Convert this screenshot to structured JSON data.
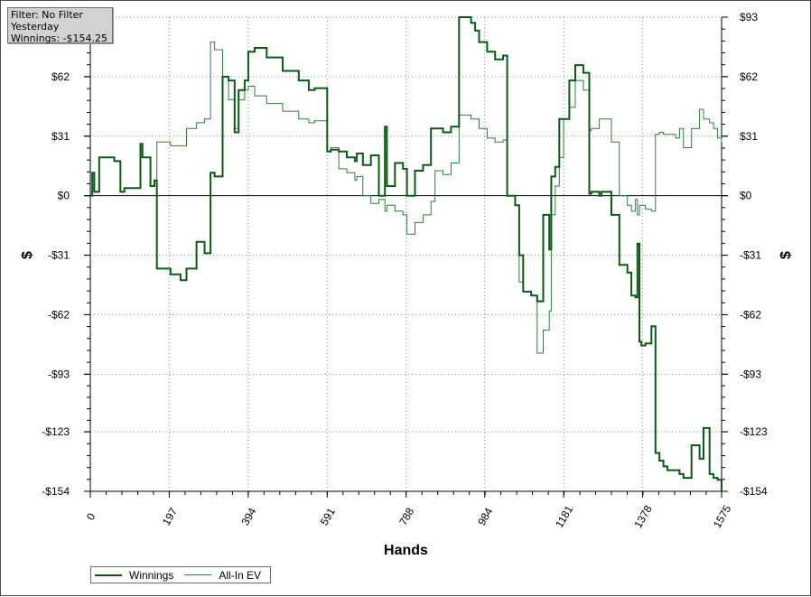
{
  "info": {
    "filter": "Filter: No Filter",
    "period": "Yesterday",
    "winnings": "Winnings: -$154.25"
  },
  "chart_data": {
    "type": "line",
    "xlabel": "Hands",
    "ylabel": "$",
    "ylabel_right": "$",
    "xlim": [
      0,
      1575
    ],
    "ylim": [
      -154,
      93
    ],
    "x_ticks": [
      "0",
      "197",
      "394",
      "591",
      "788",
      "984",
      "1181",
      "1378",
      "1575"
    ],
    "y_ticks": [
      {
        "value": 93,
        "label": "$93"
      },
      {
        "value": 62,
        "label": "$62"
      },
      {
        "value": 31,
        "label": "$31"
      },
      {
        "value": 0,
        "label": "$0"
      },
      {
        "value": -31,
        "label": "-$31"
      },
      {
        "value": -62,
        "label": "-$62"
      },
      {
        "value": -93,
        "label": "-$93"
      },
      {
        "value": -123,
        "label": "-$123"
      },
      {
        "value": -154,
        "label": "-$154"
      }
    ],
    "grid": true,
    "legend_position": "bottom-left",
    "colors": {
      "winnings": "#0a5a14",
      "allin_ev": "#2e7d3c",
      "zero_line": "#000000"
    },
    "series": [
      {
        "name": "Winnings",
        "x": [
          0,
          5,
          10,
          22,
          60,
          75,
          85,
          110,
          125,
          130,
          150,
          160,
          166,
          175,
          200,
          225,
          240,
          265,
          285,
          300,
          310,
          330,
          345,
          360,
          370,
          380,
          385,
          394,
          410,
          440,
          480,
          520,
          545,
          560,
          591,
          600,
          620,
          640,
          660,
          665,
          680,
          700,
          720,
          735,
          740,
          760,
          780,
          790,
          810,
          830,
          850,
          860,
          880,
          900,
          920,
          940,
          950,
          960,
          970,
          990,
          1010,
          1030,
          1040,
          1060,
          1070,
          1080,
          1100,
          1115,
          1130,
          1145,
          1150,
          1160,
          1170,
          1181,
          1195,
          1210,
          1230,
          1245,
          1250,
          1270,
          1275,
          1300,
          1320,
          1340,
          1350,
          1360,
          1365,
          1370,
          1375,
          1385,
          1400,
          1410,
          1420,
          1430,
          1440,
          1460,
          1470,
          1480,
          1500,
          1520,
          1530,
          1545,
          1555,
          1565,
          1575
        ],
        "values": [
          0,
          12,
          2,
          20,
          18,
          2,
          4,
          4,
          27,
          20,
          5,
          8,
          -38,
          -38,
          -41,
          -44,
          -38,
          -24,
          -30,
          12,
          10,
          62,
          60,
          33,
          55,
          55,
          60,
          75,
          77,
          72,
          65,
          60,
          55,
          56,
          23,
          24,
          23,
          20,
          18,
          22,
          16,
          21,
          0,
          36,
          5,
          17,
          14,
          0,
          13,
          16,
          35,
          35,
          33,
          36,
          93,
          93,
          90,
          86,
          80,
          75,
          71,
          73,
          0,
          -5,
          -31,
          -50,
          -52,
          -55,
          -10,
          -28,
          10,
          15,
          40,
          40,
          60,
          68,
          64,
          1,
          2,
          0,
          2,
          -10,
          -36,
          -40,
          -52,
          -53,
          -25,
          -76,
          -78,
          -77,
          -68,
          -134,
          -138,
          -141,
          -143,
          -143,
          -145,
          -147,
          -130,
          -137,
          -121,
          -145,
          -147,
          -148,
          -154
        ]
      },
      {
        "name": "All-In EV",
        "x": [
          0,
          5,
          10,
          22,
          60,
          75,
          85,
          110,
          125,
          130,
          150,
          160,
          166,
          175,
          200,
          225,
          240,
          265,
          285,
          300,
          310,
          330,
          345,
          360,
          370,
          380,
          385,
          394,
          410,
          440,
          480,
          520,
          545,
          560,
          591,
          600,
          620,
          640,
          660,
          665,
          680,
          700,
          720,
          735,
          740,
          760,
          780,
          790,
          810,
          830,
          850,
          860,
          880,
          900,
          920,
          940,
          950,
          960,
          970,
          990,
          1010,
          1030,
          1040,
          1060,
          1070,
          1080,
          1100,
          1115,
          1130,
          1145,
          1150,
          1160,
          1170,
          1181,
          1195,
          1210,
          1230,
          1245,
          1250,
          1270,
          1275,
          1300,
          1320,
          1340,
          1350,
          1360,
          1365,
          1370,
          1375,
          1385,
          1400,
          1410,
          1420,
          1430,
          1440,
          1460,
          1470,
          1480,
          1500,
          1520,
          1530,
          1545,
          1555,
          1565,
          1575
        ],
        "values": [
          0,
          12,
          2,
          20,
          18,
          2,
          4,
          4,
          27,
          20,
          5,
          8,
          28,
          28,
          26,
          26,
          35,
          38,
          40,
          80,
          76,
          62,
          50,
          35,
          50,
          50,
          55,
          57,
          52,
          48,
          44,
          40,
          38,
          39,
          23,
          25,
          14,
          12,
          8,
          10,
          0,
          -4,
          -2,
          -8,
          -5,
          -8,
          -10,
          -20,
          -14,
          -10,
          -3,
          13,
          11,
          17,
          42,
          42,
          40,
          40,
          35,
          30,
          28,
          29,
          0,
          -5,
          -45,
          -50,
          -52,
          -82,
          -70,
          -60,
          -10,
          5,
          20,
          40,
          46,
          60,
          55,
          34,
          35,
          40,
          40,
          28,
          0,
          -5,
          -8,
          -2,
          -10,
          -5,
          -5,
          -7,
          -8,
          32,
          33,
          32,
          32,
          30,
          35,
          25,
          35,
          45,
          40,
          38,
          35,
          30,
          28
        ]
      }
    ]
  }
}
